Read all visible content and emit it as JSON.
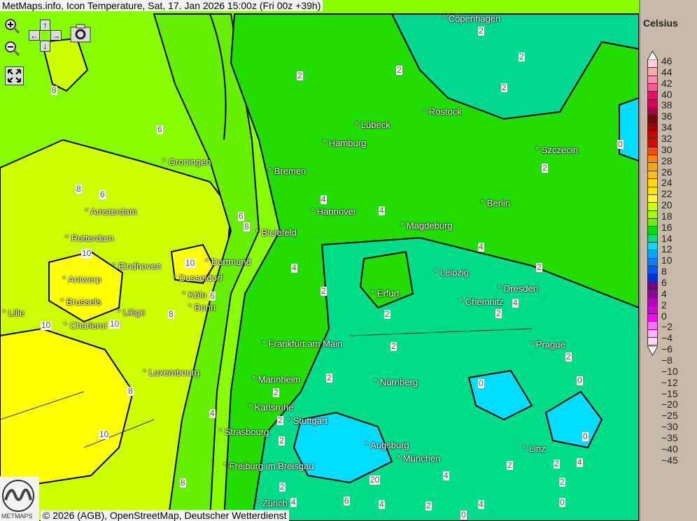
{
  "title": "MetMaps.info, Icon Temperature, Sat, 17. Jan 2026 15:00z (Fri 00z +39h)",
  "attribution": "© 2026 (AGB), OpenStreetMap, Deutscher Wetterdienst",
  "logo_text": "METMAPS",
  "controls": {
    "zoom_in": "zoom-in-icon",
    "zoom_out": "zoom-out-icon",
    "up": "↑",
    "down": "↓",
    "left": "←",
    "right": "→",
    "camera": "camera-icon",
    "fullscreen": "fullscreen-icon"
  },
  "legend": {
    "unit": "Celsius",
    "labels": [
      "46",
      "44",
      "42",
      "40",
      "38",
      "36",
      "34",
      "32",
      "30",
      "28",
      "26",
      "24",
      "22",
      "20",
      "18",
      "16",
      "14",
      "12",
      "10",
      "8",
      "6",
      "4",
      "2",
      "0",
      "−2",
      "−4",
      "−6",
      "−8",
      "−10",
      "−12",
      "−15",
      "−20",
      "−25",
      "−30",
      "−35",
      "−40",
      "−45"
    ],
    "colors": [
      "#ffd0d8",
      "#ffa8b0",
      "#ff88b0",
      "#ff5898",
      "#ff0068",
      "#d80060",
      "#a80040",
      "#800000",
      "#a00000",
      "#c80000",
      "#e80000",
      "#ff5000",
      "#ff8800",
      "#ffa800",
      "#ffc000",
      "#ffd800",
      "#ffe800",
      "#ffff20",
      "#d0ff00",
      "#a0ff00",
      "#70f000",
      "#00e000",
      "#00dd88",
      "#00ddff",
      "#00aaff",
      "#0080ff",
      "#0058ff",
      "#0030d0",
      "#700080",
      "#9000a0",
      "#b000b8",
      "#d000d8",
      "#ff00ff",
      "#ff70ff",
      "#ffb0ff",
      "#ffd8ff"
    ]
  },
  "cities": [
    "Copenhagen",
    "Rostock",
    "Lübeck",
    "Hamburg",
    "Szczecin",
    "Groningen",
    "Bremen",
    "Berlin",
    "Hannover",
    "Amsterdam",
    "Magdeburg",
    "Bielefeld",
    "Rotterdam",
    "Dortmund",
    "Eindhoven",
    "Leipzig",
    "Antwerp",
    "Dusseldorf",
    "Dresden",
    "Erfurt",
    "Köln",
    "Brussels",
    "Chemnitz",
    "Bonn",
    "Liège",
    "Lille",
    "Charleroi",
    "Frankfurt am Main",
    "Prague",
    "Luxembourg",
    "Mannheim",
    "Nürnberg",
    "Karlsruhe",
    "Stuttgart",
    "Strasbourg",
    "Augsburg",
    "Linz",
    "München",
    "Freiburg im Breisgau",
    "Zürich"
  ],
  "contour_labels": [
    "2",
    "2",
    "2",
    "2",
    "2",
    "8",
    "6",
    "0",
    "2",
    "8",
    "6",
    "4",
    "4",
    "6",
    "8",
    "10",
    "4",
    "10",
    "2",
    "4",
    "2",
    "4",
    "6",
    "2",
    "2",
    "8",
    "10",
    "10",
    "2",
    "2",
    "2",
    "2",
    "0",
    "0",
    "8",
    "4",
    "2",
    "10",
    "0",
    "2",
    "4",
    "2",
    "2",
    "4",
    "20",
    "2",
    "8",
    "2",
    "6",
    "4",
    "2",
    "4",
    "0",
    "0",
    "4"
  ]
}
